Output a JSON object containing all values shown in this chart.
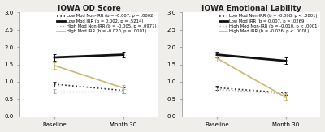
{
  "chart1": {
    "title": "IOWA OD Score",
    "x_labels": [
      "Baseline",
      "Month 30"
    ],
    "series": [
      {
        "label": "Low Mod Non-IRR (b = -0.007, p = .0002)",
        "values": [
          0.93,
          0.75
        ],
        "errors": [
          0.06,
          0.08
        ],
        "color": "#333333",
        "linestyle": "dotted",
        "linewidth": 1.2,
        "dot_density": 3
      },
      {
        "label": "Low Mod IRR (b = 0.002, p = .5214)",
        "values": [
          1.7,
          1.78
        ],
        "errors": [
          0.1,
          0.09
        ],
        "color": "#111111",
        "linestyle": "solid",
        "linewidth": 2.0,
        "dot_density": 0
      },
      {
        "label": "High Mod Non-IRR (b = -0.005, p = .0977)",
        "values": [
          0.73,
          0.73
        ],
        "errors": [
          0.05,
          0.06
        ],
        "color": "#aaaaaa",
        "linestyle": "dotted",
        "linewidth": 1.0,
        "dot_density": 3
      },
      {
        "label": "High Mod IRR (b = -0.020, p = .0001)",
        "values": [
          1.47,
          0.82
        ],
        "errors": [
          0.1,
          0.09
        ],
        "color": "#c8b870",
        "linestyle": "solid",
        "linewidth": 1.2,
        "dot_density": 0
      }
    ],
    "ylim": [
      0,
      3.0
    ],
    "yticks": [
      0,
      0.5,
      1.0,
      1.5,
      2.0,
      2.5,
      3.0
    ]
  },
  "chart2": {
    "title": "IOWA Emotional Lability",
    "x_labels": [
      "Baseline",
      "Month 30"
    ],
    "series": [
      {
        "label": "Low Mod Non-IRR (b = -0.008, p < .0001)",
        "values": [
          0.83,
          0.68
        ],
        "errors": [
          0.06,
          0.05
        ],
        "color": "#333333",
        "linestyle": "dotted",
        "linewidth": 1.2,
        "dot_density": 3
      },
      {
        "label": "Low Mod IRR (b = 0.007, p = .0269)",
        "values": [
          1.78,
          1.6
        ],
        "errors": [
          0.09,
          0.09
        ],
        "color": "#111111",
        "linestyle": "solid",
        "linewidth": 2.0,
        "dot_density": 0
      },
      {
        "label": "High Mod Non-IRR (b = -0.010, p < .0001)",
        "values": [
          0.78,
          0.65
        ],
        "errors": [
          0.06,
          0.05
        ],
        "color": "#aaaaaa",
        "linestyle": "dotted",
        "linewidth": 1.0,
        "dot_density": 3
      },
      {
        "label": "High Mod IRR (b = -0.026, p < .0001)",
        "values": [
          1.68,
          0.55
        ],
        "errors": [
          0.09,
          0.09
        ],
        "color": "#c8b870",
        "linestyle": "solid",
        "linewidth": 1.2,
        "dot_density": 0
      }
    ],
    "ylim": [
      0,
      3.0
    ],
    "yticks": [
      0,
      0.5,
      1.0,
      1.5,
      2.0,
      2.5,
      3.0
    ]
  },
  "background_color": "#f0eeeb",
  "panel_color": "#ffffff",
  "legend_fontsize": 3.8,
  "title_fontsize": 6.5,
  "tick_fontsize": 5.0,
  "xlabel_fontsize": 5.5,
  "cap_size": 1.5,
  "marker_size": 0
}
